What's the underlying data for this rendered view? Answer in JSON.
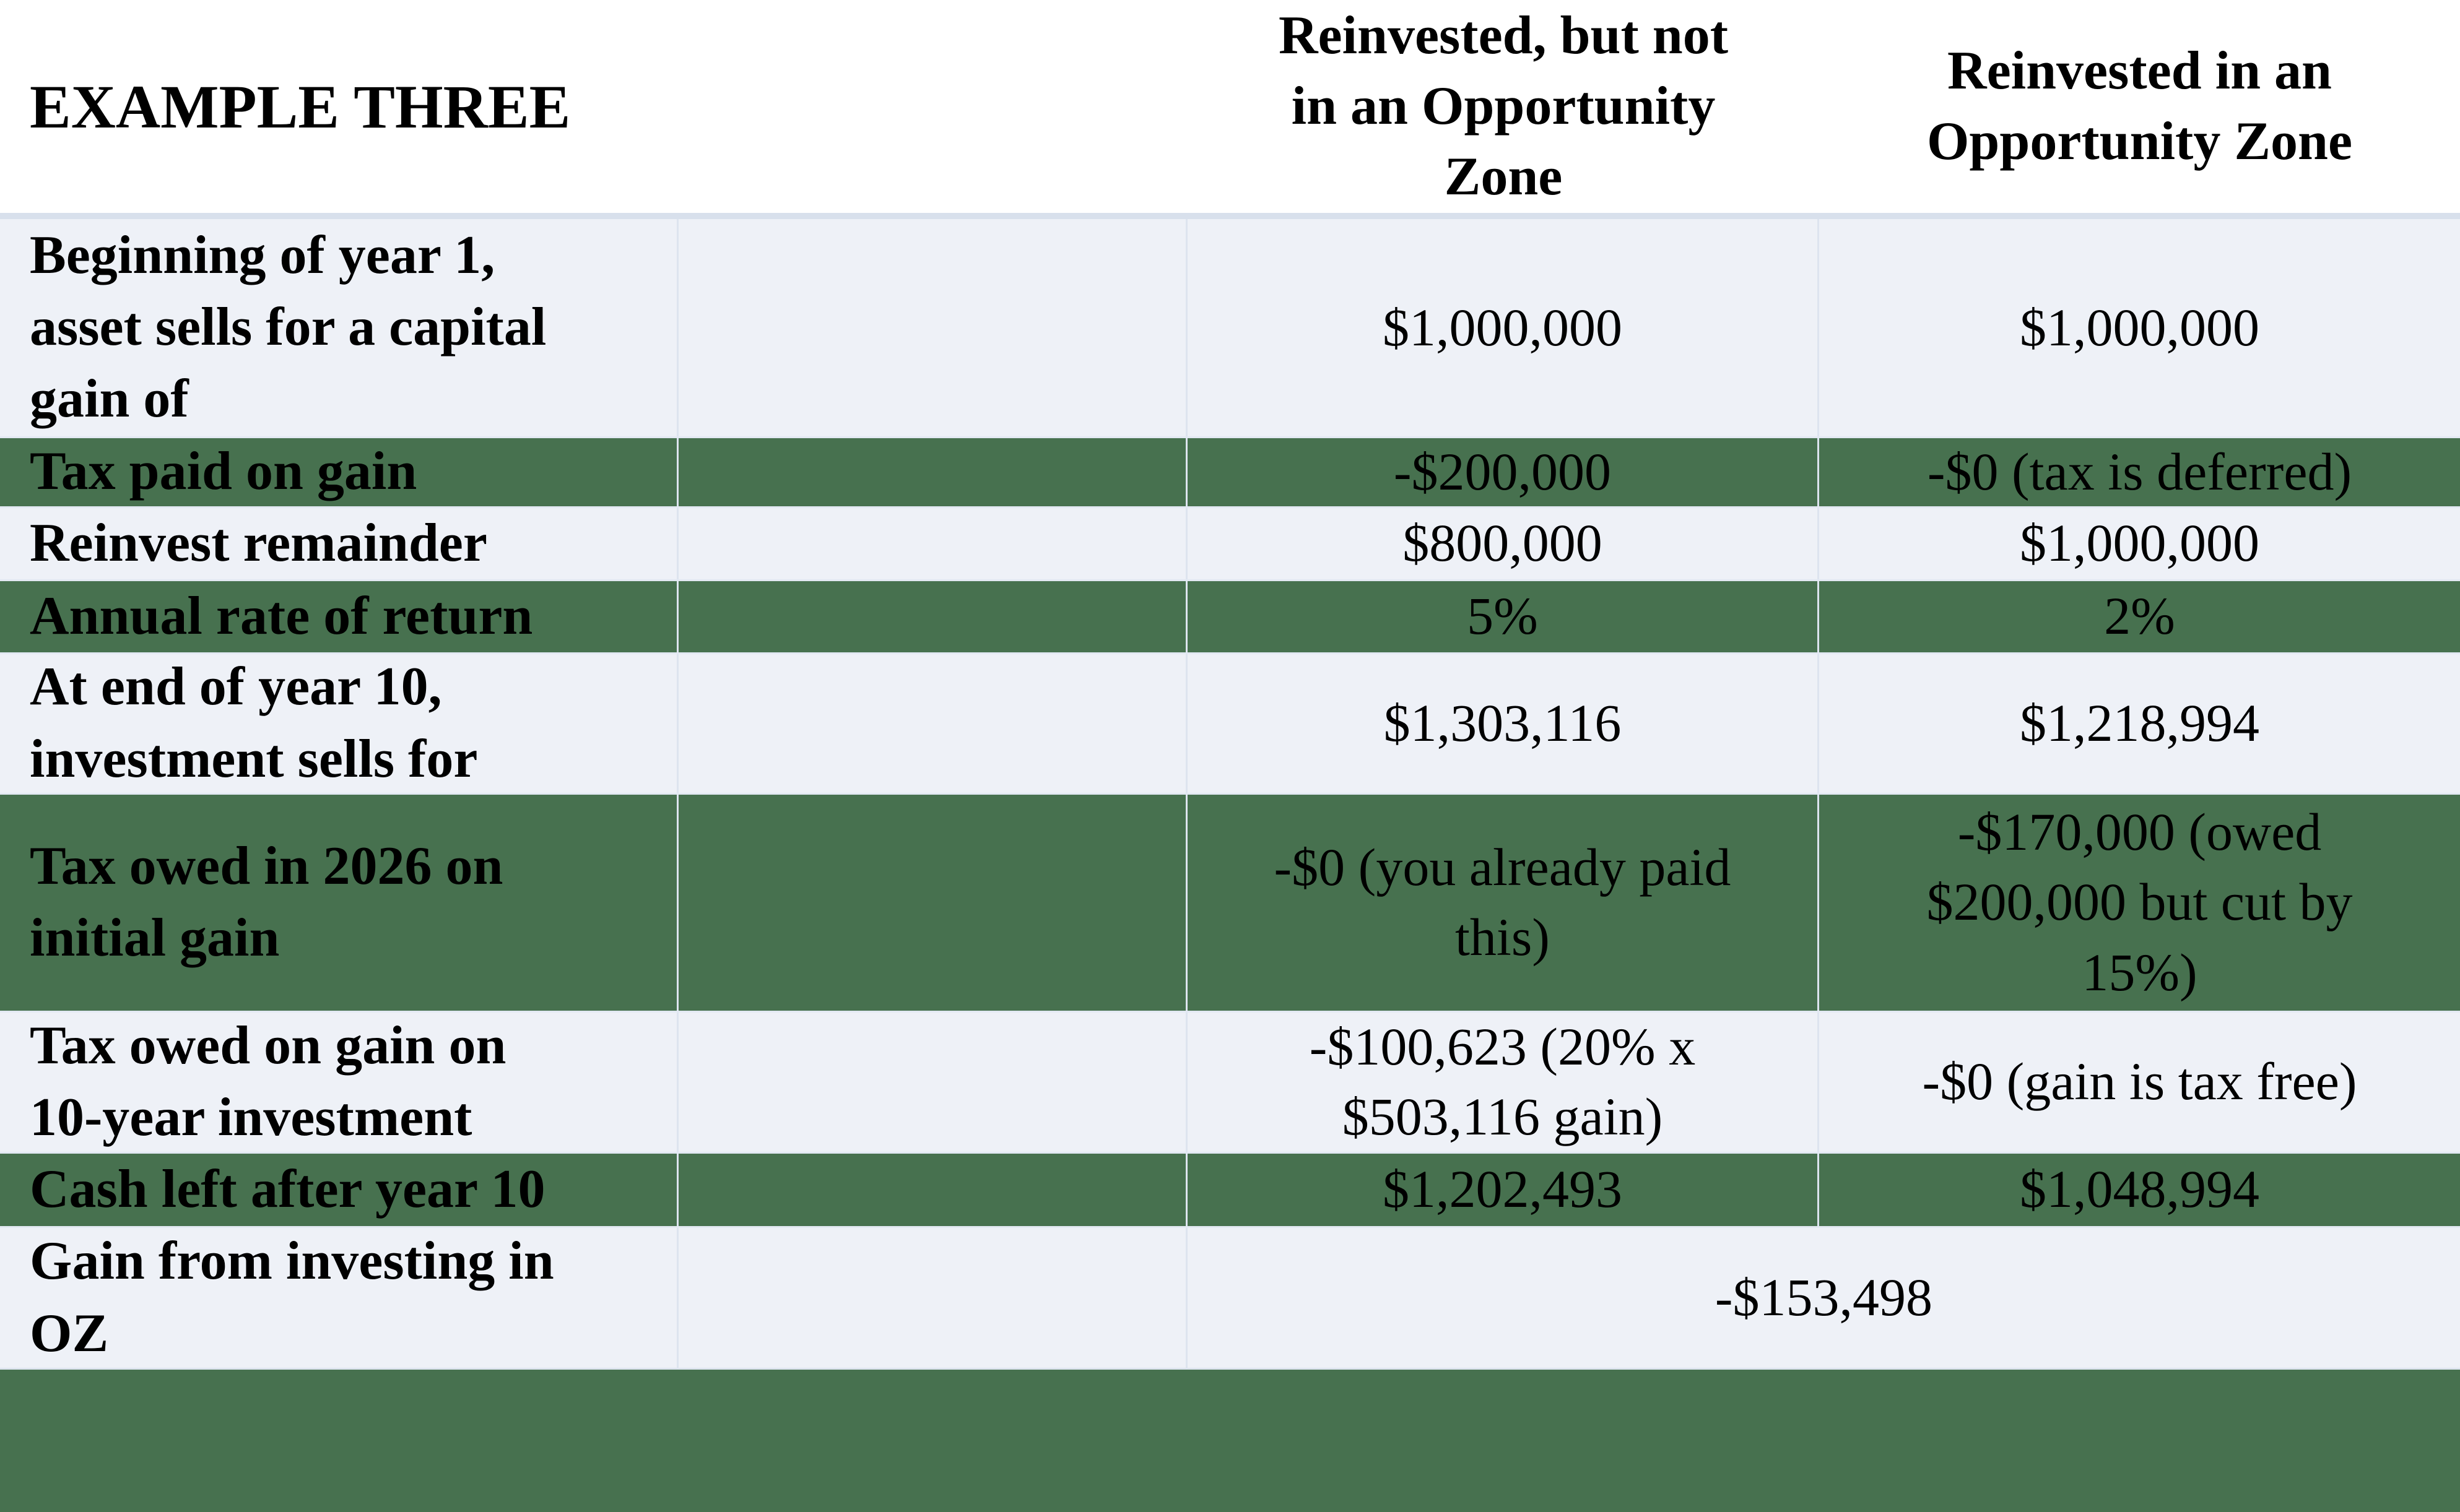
{
  "table": {
    "title": "EXAMPLE THREE",
    "columns": [
      "Reinvested, but not\nin an Opportunity\nZone",
      "Reinvested in an\nOpportunity Zone"
    ],
    "rows": [
      {
        "label": "Beginning of year 1,\nasset sells for a capital\ngain of",
        "not_oz": "$1,000,000",
        "oz": "$1,000,000"
      },
      {
        "label": "Tax paid on gain",
        "not_oz": "-$200,000",
        "oz": "-$0 (tax is deferred)"
      },
      {
        "label": "Reinvest remainder",
        "not_oz": "$800,000",
        "oz": "$1,000,000"
      },
      {
        "label": "Annual rate of return",
        "not_oz": "5%",
        "oz": "2%"
      },
      {
        "label": "At end of year 10,\ninvestment sells for",
        "not_oz": "$1,303,116",
        "oz": "$1,218,994"
      },
      {
        "label": "Tax owed in 2026 on\ninitial gain",
        "not_oz": "-$0 (you already paid\nthis)",
        "oz": "-$170,000 (owed\n$200,000 but cut by\n15%)"
      },
      {
        "label": "Tax owed on gain on\n10-year investment",
        "not_oz": "-$100,623 (20% x\n$503,116 gain)",
        "oz": "-$0 (gain is tax free)"
      },
      {
        "label": "Cash left after year 10",
        "not_oz": "$1,202,493",
        "oz": "$1,048,994"
      },
      {
        "label": "Gain from investing in\nOZ",
        "merged_value": "-$153,498"
      }
    ],
    "colors": {
      "green": "#47714f",
      "light_row": "#eef1f7",
      "header_band": "#d8e0ec",
      "grid_line": "#dde4ef"
    }
  }
}
